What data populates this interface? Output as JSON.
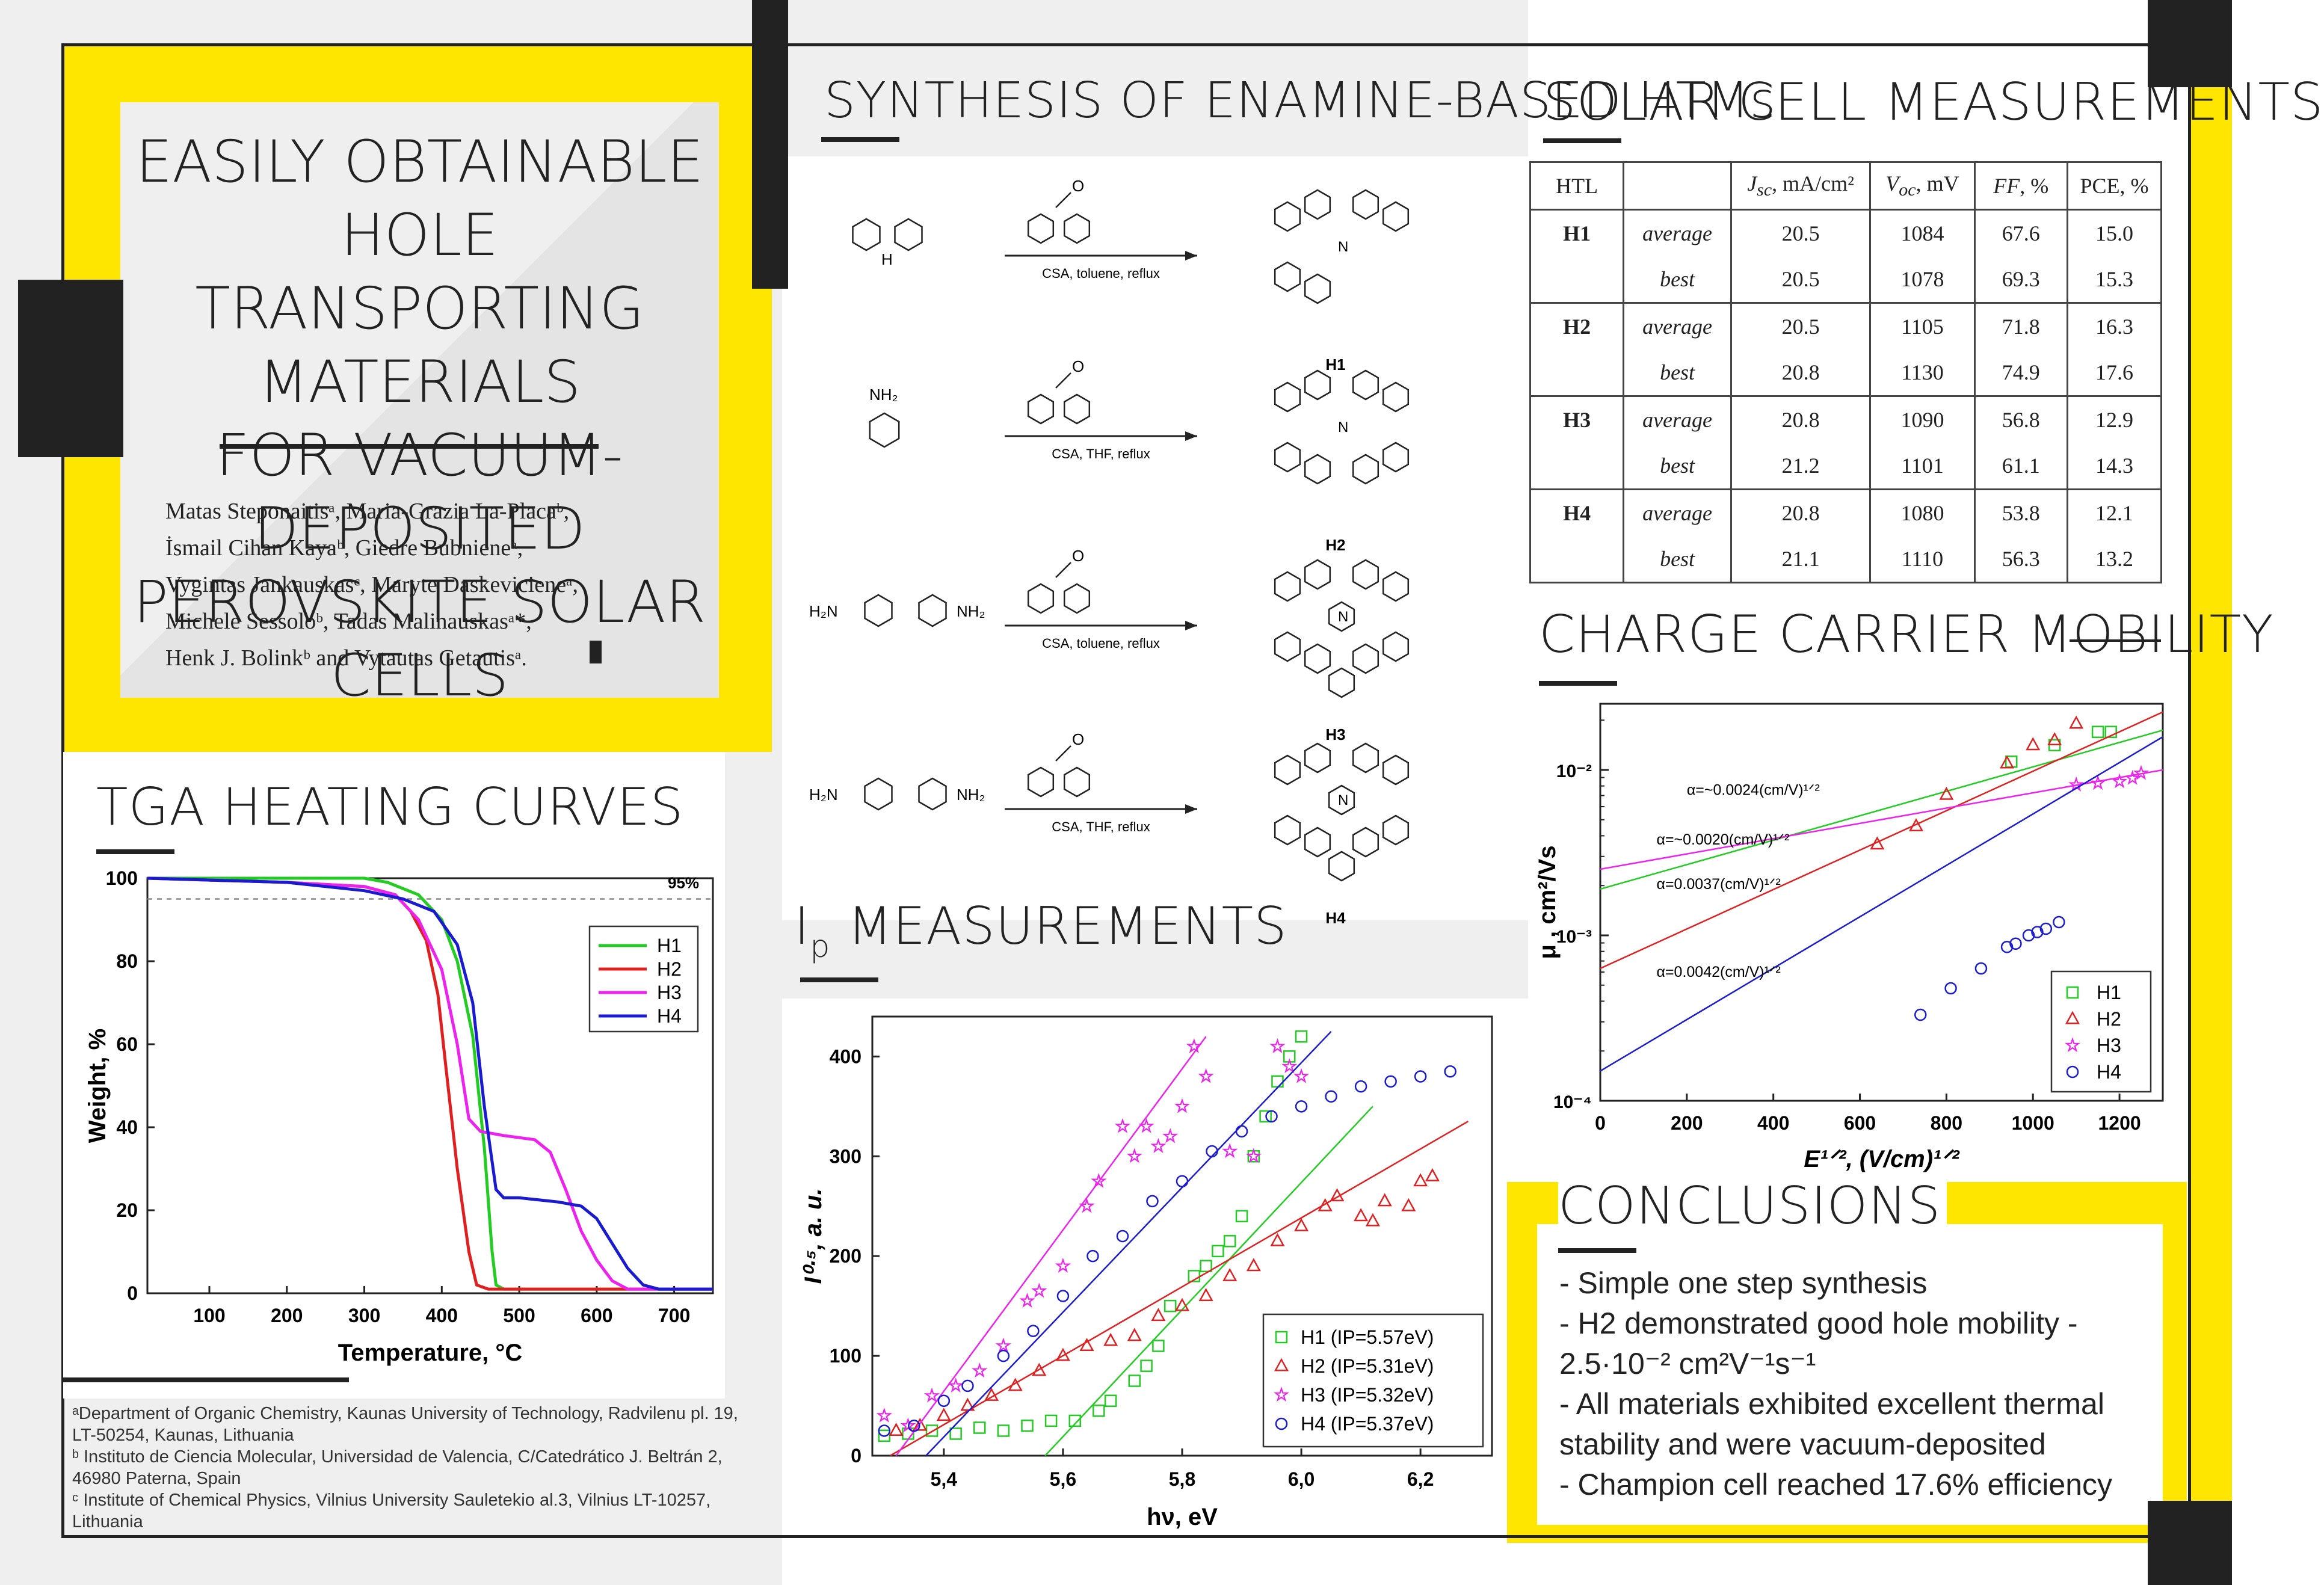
{
  "title": {
    "lines": [
      "EASILY OBTAINABLE HOLE",
      "TRANSPORTING MATERIALS",
      "FOR VACUUM-DEPOSITED",
      "PEROVSKITE SOLAR CELLS"
    ]
  },
  "authors": {
    "lines": [
      "Matas Steponaitisᵃ, Maria-Grazia La-Placaᵇ,",
      "İsmail Cihan Kayaᵇ, Giedre Bubnieneᵃ,",
      "Vygintas Jankauskasᶜ, Maryte Daskevicieneᵃ,",
      "Michele Sessoloᵇ, Tadas Malinauskasᵃ*,",
      "Henk J. Bolinkᵇ and Vytautas Getautisᵃ."
    ]
  },
  "affiliations": [
    "ᵃDepartment of Organic Chemistry, Kaunas University of Technology, Radvilenu pl. 19, LT-50254, Kaunas, Lithuania",
    "ᵇ Instituto de Ciencia Molecular, Universidad de Valencia, C/Catedrático J. Beltrán 2, 46980 Paterna, Spain",
    "ᶜ Institute of Chemical Physics, Vilnius University Sauletekio al.3, Vilnius LT-10257,  Lithuania"
  ],
  "sections": {
    "synthesis": "SYNTHESIS OF ENAMINE-BASED HTMs",
    "solar": "SOLAR CELL MEASUREMENTS",
    "mobility": "CHARGE CARRIER MOBILITY",
    "tga": "TGA HEATING CURVES",
    "ip": "MEASUREMENTS",
    "ip_prefix": "I",
    "ip_sub": "p",
    "conclusions": "CONCLUSIONS"
  },
  "synthesis": {
    "reactions": [
      {
        "conditions": "CSA, toluene, reflux",
        "product": "H1",
        "reactant_label": "H"
      },
      {
        "conditions": "CSA, THF, reflux",
        "product": "H2",
        "reactant_label": "NH₂"
      },
      {
        "conditions": "CSA, toluene, reflux",
        "product": "H3",
        "reactant_label": "H₂N",
        "reactant_label2": "NH₂"
      },
      {
        "conditions": "CSA, THF, reflux",
        "product": "H4",
        "reactant_label": "H₂N",
        "reactant_label2": "NH₂"
      }
    ]
  },
  "solar_table": {
    "headers": [
      "HTL",
      "",
      "Jsc, mA/cm²",
      "Voc, mV",
      "FF, %",
      "PCE, %"
    ],
    "rows": [
      {
        "htl": "H1",
        "type": "average",
        "jsc": "20.5",
        "voc": "1084",
        "ff": "67.6",
        "pce": "15.0"
      },
      {
        "htl": "",
        "type": "best",
        "jsc": "20.5",
        "voc": "1078",
        "ff": "69.3",
        "pce": "15.3"
      },
      {
        "htl": "H2",
        "type": "average",
        "jsc": "20.5",
        "voc": "1105",
        "ff": "71.8",
        "pce": "16.3"
      },
      {
        "htl": "",
        "type": "best",
        "jsc": "20.8",
        "voc": "1130",
        "ff": "74.9",
        "pce": "17.6"
      },
      {
        "htl": "H3",
        "type": "average",
        "jsc": "20.8",
        "voc": "1090",
        "ff": "56.8",
        "pce": "12.9"
      },
      {
        "htl": "",
        "type": "best",
        "jsc": "21.2",
        "voc": "1101",
        "ff": "61.1",
        "pce": "14.3"
      },
      {
        "htl": "H4",
        "type": "average",
        "jsc": "20.8",
        "voc": "1080",
        "ff": "53.8",
        "pce": "12.1"
      },
      {
        "htl": "",
        "type": "best",
        "jsc": "21.1",
        "voc": "1110",
        "ff": "56.3",
        "pce": "13.2"
      }
    ]
  },
  "conclusions": {
    "items": [
      "- Simple one step synthesis",
      "- H2 demonstrated good hole mobility -",
      "2.5·10⁻² cm²V⁻¹s⁻¹",
      "- All materials exhibited excellent thermal",
      "stability and were vacuum-deposited",
      "- Champion cell reached 17.6% efficiency"
    ]
  },
  "colors": {
    "H1": "#22cc22",
    "H2": "#e02020",
    "H3": "#ee22ee",
    "H4": "#1a1ad0",
    "yellow": "#ffe600",
    "dark": "#222222"
  },
  "chart_data": [
    {
      "id": "tga",
      "type": "line",
      "xlabel": "Temperature, °C",
      "ylabel": "Weight, %",
      "xlim": [
        20,
        750
      ],
      "ylim": [
        0,
        100
      ],
      "xticks": [
        100,
        200,
        300,
        400,
        500,
        600,
        700
      ],
      "yticks": [
        0,
        20,
        40,
        60,
        80,
        100
      ],
      "reference_line": {
        "y": 95,
        "label": "95%"
      },
      "legend": "top-right",
      "series": [
        {
          "name": "H1",
          "x": [
            20,
            300,
            330,
            370,
            400,
            420,
            440,
            455,
            465,
            470,
            480,
            750
          ],
          "y": [
            100,
            100,
            99,
            96,
            90,
            80,
            62,
            35,
            10,
            2,
            1,
            1
          ]
        },
        {
          "name": "H2",
          "x": [
            20,
            200,
            300,
            340,
            360,
            380,
            395,
            405,
            420,
            435,
            445,
            460,
            750
          ],
          "y": [
            100,
            99,
            98,
            96,
            92,
            85,
            72,
            55,
            30,
            10,
            2,
            1,
            1
          ]
        },
        {
          "name": "H3",
          "x": [
            20,
            200,
            300,
            340,
            370,
            400,
            420,
            435,
            450,
            480,
            520,
            540,
            560,
            580,
            600,
            620,
            640,
            660,
            750
          ],
          "y": [
            100,
            99,
            98,
            96,
            90,
            78,
            60,
            42,
            39,
            38,
            37,
            34,
            25,
            15,
            8,
            3,
            1,
            1,
            1
          ]
        },
        {
          "name": "H4",
          "x": [
            20,
            200,
            300,
            350,
            390,
            420,
            440,
            455,
            470,
            480,
            500,
            550,
            580,
            600,
            620,
            640,
            660,
            680,
            700,
            750
          ],
          "y": [
            100,
            99,
            97,
            95,
            92,
            84,
            70,
            45,
            25,
            23,
            23,
            22,
            21,
            18,
            12,
            6,
            2,
            1,
            1,
            1
          ]
        }
      ]
    },
    {
      "id": "ip",
      "type": "scatter",
      "xlabel": "hν, eV",
      "ylabel": "I⁰·⁵, a. u.",
      "xlim": [
        5.28,
        6.32
      ],
      "ylim": [
        0,
        440
      ],
      "xticks": [
        5.4,
        5.6,
        5.8,
        6.0,
        6.2
      ],
      "xticklabels": [
        "5,4",
        "5,6",
        "5,8",
        "6,0",
        "6,2"
      ],
      "yticks": [
        0,
        100,
        200,
        300,
        400
      ],
      "legend": "bottom-right",
      "series": [
        {
          "name": "H1 (IP=5.57eV)",
          "marker": "square",
          "fit": [
            [
              5.57,
              0
            ],
            [
              6.12,
              350
            ]
          ],
          "x": [
            5.3,
            5.34,
            5.38,
            5.42,
            5.46,
            5.5,
            5.54,
            5.58,
            5.62,
            5.66,
            5.68,
            5.72,
            5.74,
            5.76,
            5.78,
            5.82,
            5.84,
            5.86,
            5.88,
            5.9,
            5.92,
            5.94,
            5.96,
            5.98,
            6.0
          ],
          "y": [
            20,
            22,
            25,
            22,
            28,
            25,
            30,
            35,
            35,
            45,
            55,
            75,
            90,
            110,
            150,
            180,
            190,
            205,
            215,
            240,
            300,
            340,
            375,
            400,
            420
          ]
        },
        {
          "name": "H2 (IP=5.31eV)",
          "marker": "triangle",
          "fit": [
            [
              5.31,
              0
            ],
            [
              6.28,
              335
            ]
          ],
          "x": [
            5.32,
            5.36,
            5.4,
            5.44,
            5.48,
            5.52,
            5.56,
            5.6,
            5.64,
            5.68,
            5.72,
            5.76,
            5.8,
            5.84,
            5.88,
            5.92,
            5.96,
            6.0,
            6.04,
            6.06,
            6.1,
            6.12,
            6.14,
            6.18,
            6.2,
            6.22
          ],
          "y": [
            25,
            30,
            40,
            50,
            60,
            70,
            85,
            100,
            110,
            115,
            120,
            140,
            150,
            160,
            180,
            190,
            215,
            230,
            250,
            260,
            240,
            235,
            255,
            250,
            275,
            280
          ]
        },
        {
          "name": "H3 (IP=5.32eV)",
          "marker": "star",
          "fit": [
            [
              5.32,
              0
            ],
            [
              5.84,
              420
            ]
          ],
          "x": [
            5.3,
            5.34,
            5.38,
            5.42,
            5.46,
            5.5,
            5.54,
            5.56,
            5.6,
            5.64,
            5.66,
            5.7,
            5.72,
            5.74,
            5.76,
            5.78,
            5.8,
            5.82,
            5.84,
            5.88,
            5.92,
            5.96,
            5.98,
            6.0
          ],
          "y": [
            40,
            30,
            60,
            70,
            85,
            110,
            155,
            165,
            190,
            250,
            275,
            330,
            300,
            330,
            310,
            320,
            350,
            410,
            380,
            305,
            300,
            410,
            390,
            380
          ]
        },
        {
          "name": "H4 (IP=5.37eV)",
          "marker": "circle",
          "fit": [
            [
              5.37,
              0
            ],
            [
              6.05,
              425
            ]
          ],
          "x": [
            5.3,
            5.35,
            5.4,
            5.44,
            5.5,
            5.55,
            5.6,
            5.65,
            5.7,
            5.75,
            5.8,
            5.85,
            5.9,
            5.95,
            6.0,
            6.05,
            6.1,
            6.15,
            6.2,
            6.25
          ],
          "y": [
            25,
            30,
            55,
            70,
            100,
            125,
            160,
            200,
            220,
            255,
            275,
            305,
            325,
            340,
            350,
            360,
            370,
            375,
            380,
            385
          ]
        }
      ]
    },
    {
      "id": "mobility",
      "type": "scatter",
      "xlabel": "E¹ᐟ², (V/cm)¹ᐟ²",
      "ylabel": "μ , cm²/Vs",
      "xlim": [
        0,
        1300
      ],
      "ylim_log10": [
        -4,
        -1.6
      ],
      "xticks": [
        0,
        200,
        400,
        600,
        800,
        1000,
        1200
      ],
      "yticks_exp": [
        -4,
        -3,
        -2
      ],
      "yticklabels": [
        "10⁻⁴",
        "10⁻³",
        "10⁻²"
      ],
      "legend": "bottom-right",
      "annotations": [
        {
          "text": "α=~0.0024(cm/V)¹ᐟ²",
          "x": 200,
          "log_y": -2.15
        },
        {
          "text": "α=~0.0020(cm/V)¹ᐟ²",
          "x": 130,
          "log_y": -2.45
        },
        {
          "text": "α=0.0037(cm/V)¹ᐟ²",
          "x": 130,
          "log_y": -2.72
        },
        {
          "text": "α=0.0042(cm/V)¹ᐟ²",
          "x": 130,
          "log_y": -3.25
        }
      ],
      "series": [
        {
          "name": "H1",
          "marker": "square",
          "fit_log": [
            [
              0,
              -2.72
            ],
            [
              1300,
              -1.76
            ]
          ],
          "x": [
            950,
            1050,
            1150,
            1180
          ],
          "log_y": [
            -1.95,
            -1.85,
            -1.77,
            -1.77
          ]
        },
        {
          "name": "H2",
          "marker": "triangle",
          "fit_log": [
            [
              0,
              -3.2
            ],
            [
              1300,
              -1.65
            ]
          ],
          "x": [
            640,
            730,
            800,
            940,
            1000,
            1050,
            1100
          ],
          "log_y": [
            -2.45,
            -2.34,
            -2.15,
            -1.96,
            -1.85,
            -1.82,
            -1.72
          ]
        },
        {
          "name": "H3",
          "marker": "star",
          "fit_log": [
            [
              0,
              -2.6
            ],
            [
              1300,
              -2.0
            ]
          ],
          "x": [
            1100,
            1150,
            1200,
            1230,
            1250
          ],
          "log_y": [
            -2.09,
            -2.08,
            -2.07,
            -2.05,
            -2.02
          ]
        },
        {
          "name": "H4",
          "marker": "circle",
          "fit_log": [
            [
              0,
              -3.82
            ],
            [
              1300,
              -1.8
            ]
          ],
          "x": [
            740,
            810,
            880,
            940,
            960,
            990,
            1010,
            1030,
            1060
          ],
          "log_y": [
            -3.48,
            -3.32,
            -3.2,
            -3.07,
            -3.05,
            -3.0,
            -2.98,
            -2.96,
            -2.92
          ]
        }
      ]
    }
  ]
}
